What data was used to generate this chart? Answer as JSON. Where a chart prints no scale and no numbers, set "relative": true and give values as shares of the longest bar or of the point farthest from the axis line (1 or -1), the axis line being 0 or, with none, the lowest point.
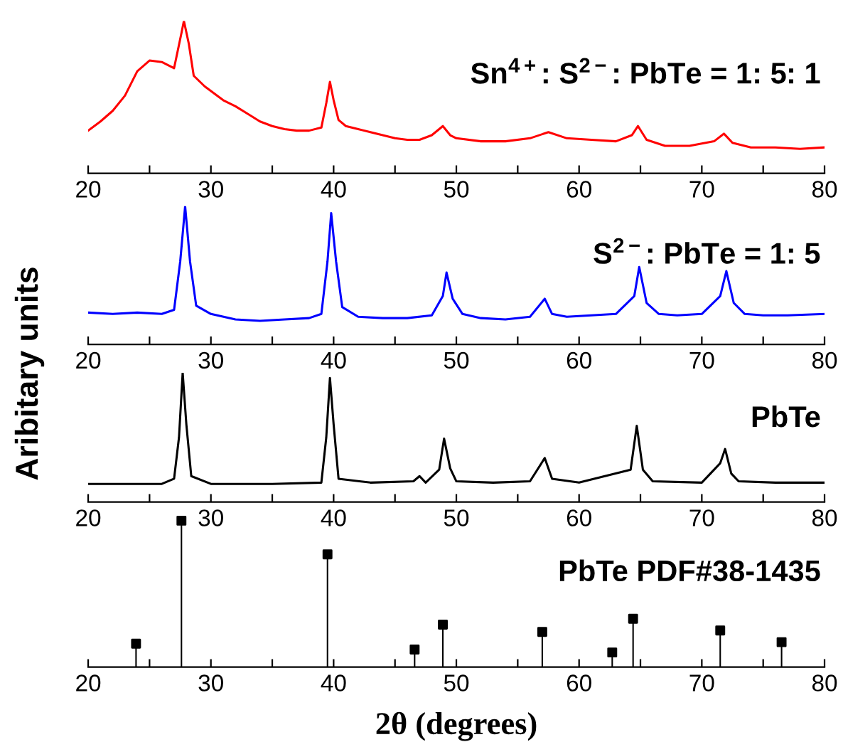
{
  "chart_data": [
    {
      "type": "line",
      "relative": true,
      "ylabel": "Aribitary units",
      "xlim": [
        20,
        80
      ],
      "xticks": [
        20,
        {
          "value": 25,
          "label": null
        },
        30,
        {
          "value": 35,
          "label": null
        },
        40,
        {
          "value": 45,
          "label": null
        },
        50,
        {
          "value": 55,
          "label": null
        },
        60,
        {
          "value": 65,
          "label": null
        },
        70,
        {
          "value": 75,
          "label": null
        },
        80
      ],
      "grid": false,
      "legend": false,
      "marker": "none",
      "line_style": "solid",
      "series": [
        {
          "name": "Sn$^{4+}$: S$^{2−}$: PbTe = 1: 5: 1",
          "color": "#ff0000",
          "x": [
            20,
            21,
            22,
            23,
            24,
            25,
            26,
            27,
            27.6,
            27.8,
            28.2,
            28.6,
            29.5,
            31,
            32,
            33,
            34,
            35,
            36,
            37,
            38,
            39,
            39.4,
            39.7,
            40.0,
            40.4,
            41,
            42,
            43,
            44,
            45,
            46,
            47,
            48,
            48.9,
            49.5,
            50,
            52,
            54,
            56,
            57.5,
            59,
            61,
            63,
            64.3,
            64.8,
            65.5,
            67,
            69,
            71,
            71.8,
            72.5,
            74,
            76,
            78,
            80
          ],
          "values": [
            0.28,
            0.34,
            0.41,
            0.51,
            0.67,
            0.74,
            0.73,
            0.69,
            0.92,
            1.0,
            0.85,
            0.64,
            0.57,
            0.48,
            0.44,
            0.39,
            0.34,
            0.31,
            0.29,
            0.28,
            0.28,
            0.3,
            0.46,
            0.6,
            0.48,
            0.35,
            0.31,
            0.29,
            0.27,
            0.25,
            0.23,
            0.22,
            0.22,
            0.25,
            0.31,
            0.25,
            0.23,
            0.21,
            0.21,
            0.23,
            0.27,
            0.23,
            0.22,
            0.21,
            0.25,
            0.31,
            0.22,
            0.18,
            0.18,
            0.21,
            0.26,
            0.2,
            0.17,
            0.17,
            0.16,
            0.17
          ]
        }
      ]
    },
    {
      "type": "line",
      "relative": true,
      "xlim": [
        20,
        80
      ],
      "xticks": [
        20,
        {
          "value": 25,
          "label": null
        },
        30,
        {
          "value": 35,
          "label": null
        },
        40,
        {
          "value": 45,
          "label": null
        },
        50,
        {
          "value": 55,
          "label": null
        },
        60,
        {
          "value": 65,
          "label": null
        },
        70,
        {
          "value": 75,
          "label": null
        },
        80
      ],
      "grid": false,
      "legend": false,
      "marker": "none",
      "line_style": "solid",
      "series": [
        {
          "name": "S$^{2−}$: PbTe = 1: 5",
          "color": "#0000ff",
          "x": [
            20,
            22,
            24,
            26,
            27,
            27.5,
            27.9,
            28.3,
            28.8,
            30,
            32,
            34,
            36,
            38,
            39,
            39.5,
            39.8,
            40.2,
            40.7,
            42,
            44,
            46,
            48,
            48.9,
            49.2,
            49.7,
            50.5,
            52,
            54,
            56,
            57.2,
            57.8,
            59,
            61,
            63,
            64.5,
            64.9,
            65.5,
            66.5,
            68,
            70,
            71.5,
            72.0,
            72.6,
            73.5,
            75,
            77,
            80
          ],
          "values": [
            0.23,
            0.22,
            0.23,
            0.22,
            0.25,
            0.6,
            1.0,
            0.6,
            0.28,
            0.22,
            0.18,
            0.17,
            0.18,
            0.19,
            0.22,
            0.6,
            0.95,
            0.6,
            0.27,
            0.2,
            0.19,
            0.19,
            0.21,
            0.35,
            0.52,
            0.33,
            0.22,
            0.19,
            0.18,
            0.2,
            0.33,
            0.22,
            0.2,
            0.21,
            0.22,
            0.35,
            0.56,
            0.3,
            0.22,
            0.21,
            0.22,
            0.35,
            0.53,
            0.3,
            0.22,
            0.21,
            0.21,
            0.22
          ]
        }
      ]
    },
    {
      "type": "line",
      "relative": true,
      "xlim": [
        20,
        80
      ],
      "xticks": [
        20,
        {
          "value": 25,
          "label": null
        },
        30,
        {
          "value": 35,
          "label": null
        },
        40,
        {
          "value": 45,
          "label": null
        },
        50,
        {
          "value": 55,
          "label": null
        },
        60,
        {
          "value": 65,
          "label": null
        },
        70,
        {
          "value": 75,
          "label": null
        },
        80
      ],
      "grid": false,
      "legend": false,
      "marker": "none",
      "line_style": "solid",
      "series": [
        {
          "name": "PbTe",
          "color": "#000000",
          "x": [
            20,
            22,
            24,
            26,
            27,
            27.4,
            27.7,
            28.0,
            28.4,
            30,
            35,
            39,
            39.4,
            39.7,
            40.0,
            40.4,
            43,
            46.5,
            47,
            47.5,
            48.6,
            49.0,
            49.5,
            50,
            53,
            56,
            57.2,
            57.8,
            60,
            64.2,
            64.7,
            65.2,
            66,
            70,
            71.5,
            71.9,
            72.4,
            73,
            76,
            80
          ],
          "values": [
            0.14,
            0.14,
            0.14,
            0.14,
            0.18,
            0.5,
            1.0,
            0.6,
            0.2,
            0.14,
            0.14,
            0.15,
            0.5,
            0.96,
            0.6,
            0.18,
            0.15,
            0.16,
            0.2,
            0.15,
            0.25,
            0.49,
            0.26,
            0.16,
            0.15,
            0.16,
            0.34,
            0.18,
            0.15,
            0.25,
            0.59,
            0.25,
            0.16,
            0.15,
            0.3,
            0.41,
            0.22,
            0.16,
            0.15,
            0.15
          ]
        }
      ]
    },
    {
      "type": "lollipop",
      "relative": true,
      "xlabel": "2θ (degrees)",
      "xlim": [
        20,
        80
      ],
      "xticks": [
        20,
        {
          "value": 25,
          "label": null
        },
        30,
        {
          "value": 35,
          "label": null
        },
        40,
        {
          "value": 45,
          "label": null
        },
        50,
        {
          "value": 55,
          "label": null
        },
        60,
        {
          "value": 65,
          "label": null
        },
        70,
        {
          "value": 75,
          "label": null
        },
        80
      ],
      "grid": false,
      "legend": false,
      "marker": "square",
      "series": [
        {
          "name": "PbTe PDF#38-1435",
          "color": "#000000",
          "x": [
            23.9,
            27.6,
            39.5,
            46.6,
            48.9,
            57.0,
            62.7,
            64.4,
            71.5,
            76.5
          ],
          "values": [
            0.16,
            1.0,
            0.77,
            0.12,
            0.29,
            0.24,
            0.1,
            0.33,
            0.25,
            0.17
          ]
        }
      ]
    }
  ]
}
